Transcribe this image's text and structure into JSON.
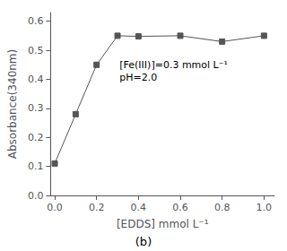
{
  "chart_data": {
    "type": "line",
    "x": [
      0.0,
      0.1,
      0.2,
      0.3,
      0.4,
      0.6,
      0.8,
      1.0
    ],
    "values": [
      0.11,
      0.28,
      0.45,
      0.55,
      0.548,
      0.55,
      0.53,
      0.55
    ],
    "xlabel": "[EDDS] mmol L⁻¹",
    "ylabel": "Absorbance(340nm)",
    "annotations": [
      "[Fe(III)]=0.3 mmol L⁻¹",
      "pH=2.0",
      "(b)"
    ],
    "xlim": [
      -0.02,
      1.05
    ],
    "ylim": [
      0.0,
      0.63
    ],
    "xticks": [
      {
        "value": 0.0,
        "label": "0.0"
      },
      0.2,
      0.4,
      0.6,
      0.8,
      {
        "value": 1.0,
        "label": "1.0"
      }
    ],
    "yticks": [
      {
        "value": 0.0,
        "label": "0.0"
      },
      0.1,
      0.2,
      0.3,
      0.4,
      0.5,
      0.6
    ],
    "color": "#555555",
    "marker": "square",
    "grid": false
  }
}
